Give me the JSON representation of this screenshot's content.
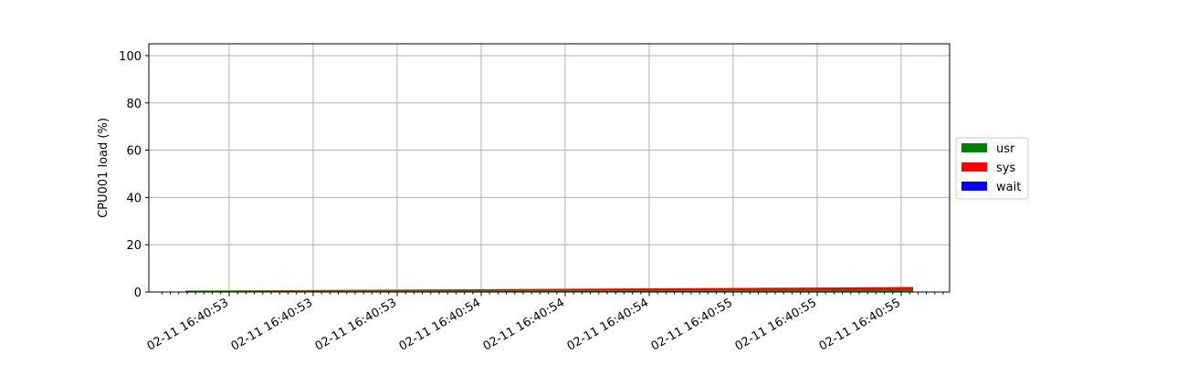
{
  "chart_data": {
    "type": "area",
    "stacked": true,
    "ylabel": "CPU001 load (%)",
    "xlabel": "",
    "title": "",
    "ylim": [
      0,
      105
    ],
    "yticks": [
      0,
      20,
      40,
      60,
      80,
      100
    ],
    "xtick_labels": [
      "02-11 16:40:53",
      "02-11 16:40:53",
      "02-11 16:40:53",
      "02-11 16:40:54",
      "02-11 16:40:54",
      "02-11 16:40:54",
      "02-11 16:40:55",
      "02-11 16:40:55",
      "02-11 16:40:55"
    ],
    "grid": true,
    "legend_position": "center-right",
    "x": [
      0,
      1
    ],
    "series": [
      {
        "name": "usr",
        "color": "#008000",
        "values": [
          0.6,
          0.7
        ]
      },
      {
        "name": "sys",
        "color": "#ff0000",
        "values": [
          0.0,
          1.4
        ]
      },
      {
        "name": "wait",
        "color": "#0000ff",
        "values": [
          0.0,
          0.0
        ]
      }
    ]
  }
}
